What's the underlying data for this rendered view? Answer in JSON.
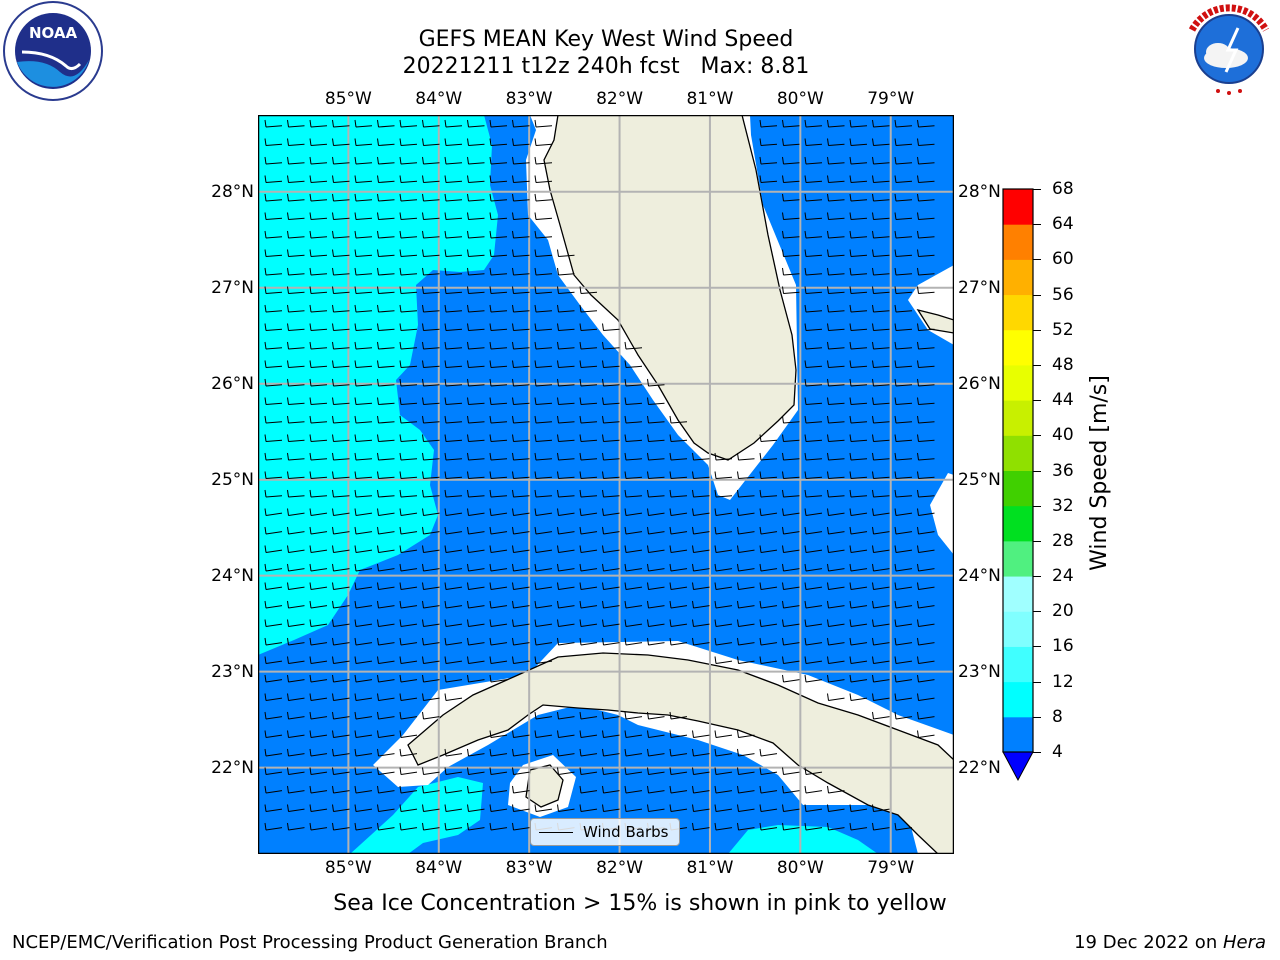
{
  "header": {
    "title_line1": "GEFS MEAN Key West Wind Speed",
    "title_line2": "20221211 t12z 240h fcst   Max: 8.81"
  },
  "logos": {
    "left": {
      "text": "NOAA",
      "icon": "noaa-logo-icon"
    },
    "right": {
      "icon": "nws-logo-icon",
      "ring_text": "NATIONAL WEATHER SERVICE"
    }
  },
  "map": {
    "lon_labels": [
      "85°W",
      "84°W",
      "83°W",
      "82°W",
      "81°W",
      "80°W",
      "79°W"
    ],
    "lat_labels": [
      "28°N",
      "27°N",
      "26°N",
      "25°N",
      "24°N",
      "23°N",
      "22°N"
    ],
    "lon_range": [
      -86,
      -78.3
    ],
    "lat_range": [
      21.1,
      28.8
    ],
    "colors": {
      "ocean_4_8": "#0080ff",
      "ocean_8_12": "#00ffff",
      "land": "#eeeedd",
      "gridlines": "#b3b3b3"
    },
    "legend": {
      "label": "Wind Barbs"
    }
  },
  "colorbar": {
    "label": "Wind Speed [m/s]",
    "ticks": [
      "68",
      "64",
      "60",
      "56",
      "52",
      "48",
      "44",
      "40",
      "36",
      "32",
      "28",
      "24",
      "20",
      "16",
      "12",
      "8",
      "4"
    ],
    "levels": [
      4,
      8,
      12,
      16,
      20,
      24,
      28,
      32,
      36,
      40,
      44,
      48,
      52,
      56,
      60,
      64,
      68
    ],
    "colors": [
      "#0080ff",
      "#00ffff",
      "#40ffff",
      "#80ffff",
      "#a0ffff",
      "#50f080",
      "#00e020",
      "#40d000",
      "#90e000",
      "#c8f000",
      "#e8ff00",
      "#ffff00",
      "#ffd800",
      "#ffb000",
      "#ff8000",
      "#ff5000",
      "#ff2000",
      "#ff0000"
    ],
    "under_color": "#0000ff"
  },
  "subtitle": "Sea Ice Concentration > 15% is shown in pink to yellow",
  "footer": {
    "left": "NCEP/EMC/Verification Post Processing Product Generation Branch",
    "right_prefix": "19 Dec 2022 on ",
    "right_machine": "Hera"
  }
}
